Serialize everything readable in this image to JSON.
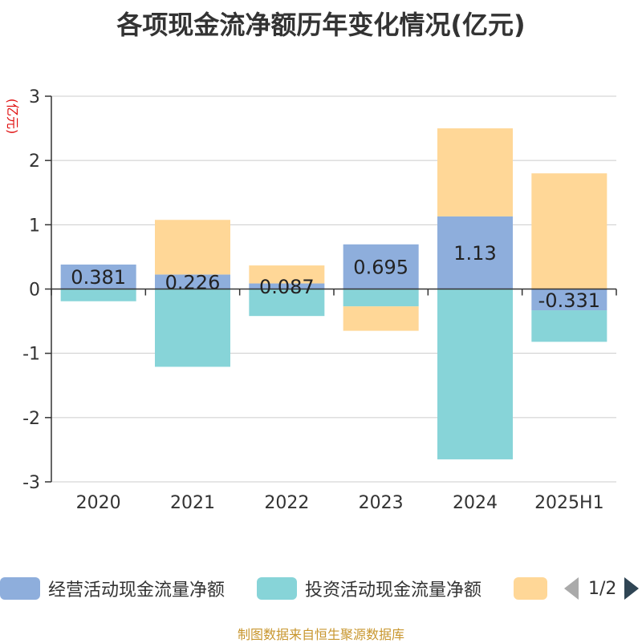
{
  "title": "各项现金流净额历年变化情况(亿元)",
  "source": "制图数据来自恒生聚源数据库",
  "colors": {
    "operating": "#8eaedc",
    "investing": "#87d4d8",
    "financing": "#ffd797",
    "axis": "#333333",
    "grid": "#cccccc",
    "ylabel": "#e01010"
  },
  "chart_data": {
    "type": "bar",
    "stacked": true,
    "title": "各项现金流净额历年变化情况(亿元)",
    "ylabel": "(亿元)",
    "xlabel": "",
    "ylim": [
      -3,
      3
    ],
    "yticks": [
      3,
      2,
      1,
      0,
      -1,
      -2,
      -3
    ],
    "grid": true,
    "legend_position": "bottom",
    "categories": [
      "2020",
      "2021",
      "2022",
      "2023",
      "2024",
      "2025H1"
    ],
    "series": [
      {
        "name": "经营活动现金流量净额",
        "color": "#8eaedc",
        "values": [
          0.381,
          0.226,
          0.087,
          0.695,
          1.13,
          -0.331
        ],
        "labels": [
          "0.381",
          "0.226",
          "0.087",
          "0.695",
          "1.13",
          "-0.331"
        ]
      },
      {
        "name": "投资活动现金流量净额",
        "color": "#87d4d8",
        "values": [
          -0.19,
          -1.21,
          -0.42,
          -0.27,
          -2.65,
          -0.49
        ]
      },
      {
        "name": "",
        "color": "#ffd797",
        "values": [
          0,
          0.85,
          0.28,
          -0.38,
          1.37,
          1.8
        ]
      }
    ]
  },
  "legend": {
    "items": [
      {
        "label": "经营活动现金流量净额",
        "color": "#8eaedc"
      },
      {
        "label": "投资活动现金流量净额",
        "color": "#87d4d8"
      },
      {
        "label": "",
        "color": "#ffd797"
      }
    ],
    "page": "1/2"
  }
}
